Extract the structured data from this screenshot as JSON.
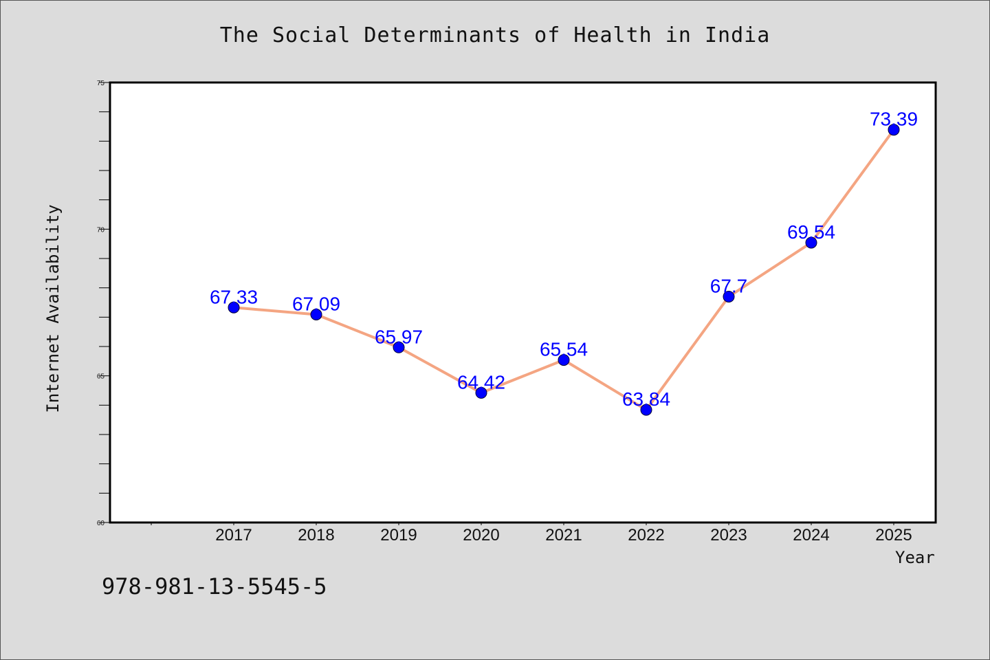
{
  "colors": {
    "background": "#dcdcdc",
    "line": "#f4a582",
    "marker": "#0000ff",
    "label": "#0000ff"
  },
  "chart_data": {
    "type": "line",
    "title": "The Social Determinants of Health in India",
    "xlabel": "Year",
    "ylabel": "Internet Availability",
    "categories": [
      "2017",
      "2018",
      "2019",
      "2020",
      "2021",
      "2022",
      "2023",
      "2024",
      "2025"
    ],
    "series": [
      {
        "values": [
          67.33,
          67.09,
          65.97,
          64.42,
          65.54,
          63.84,
          67.7,
          69.54,
          73.39
        ],
        "labels": [
          "67.33",
          "67.09",
          "65.97",
          "64.42",
          "65.54",
          "63.84",
          "67.7",
          "69.54",
          "73.39"
        ]
      }
    ],
    "ylim": [
      60,
      75
    ],
    "yticks": [
      "60",
      "65",
      "70",
      "75"
    ],
    "grid": false,
    "legend": "none"
  },
  "footer": {
    "isbn": "978-981-13-5545-5"
  }
}
